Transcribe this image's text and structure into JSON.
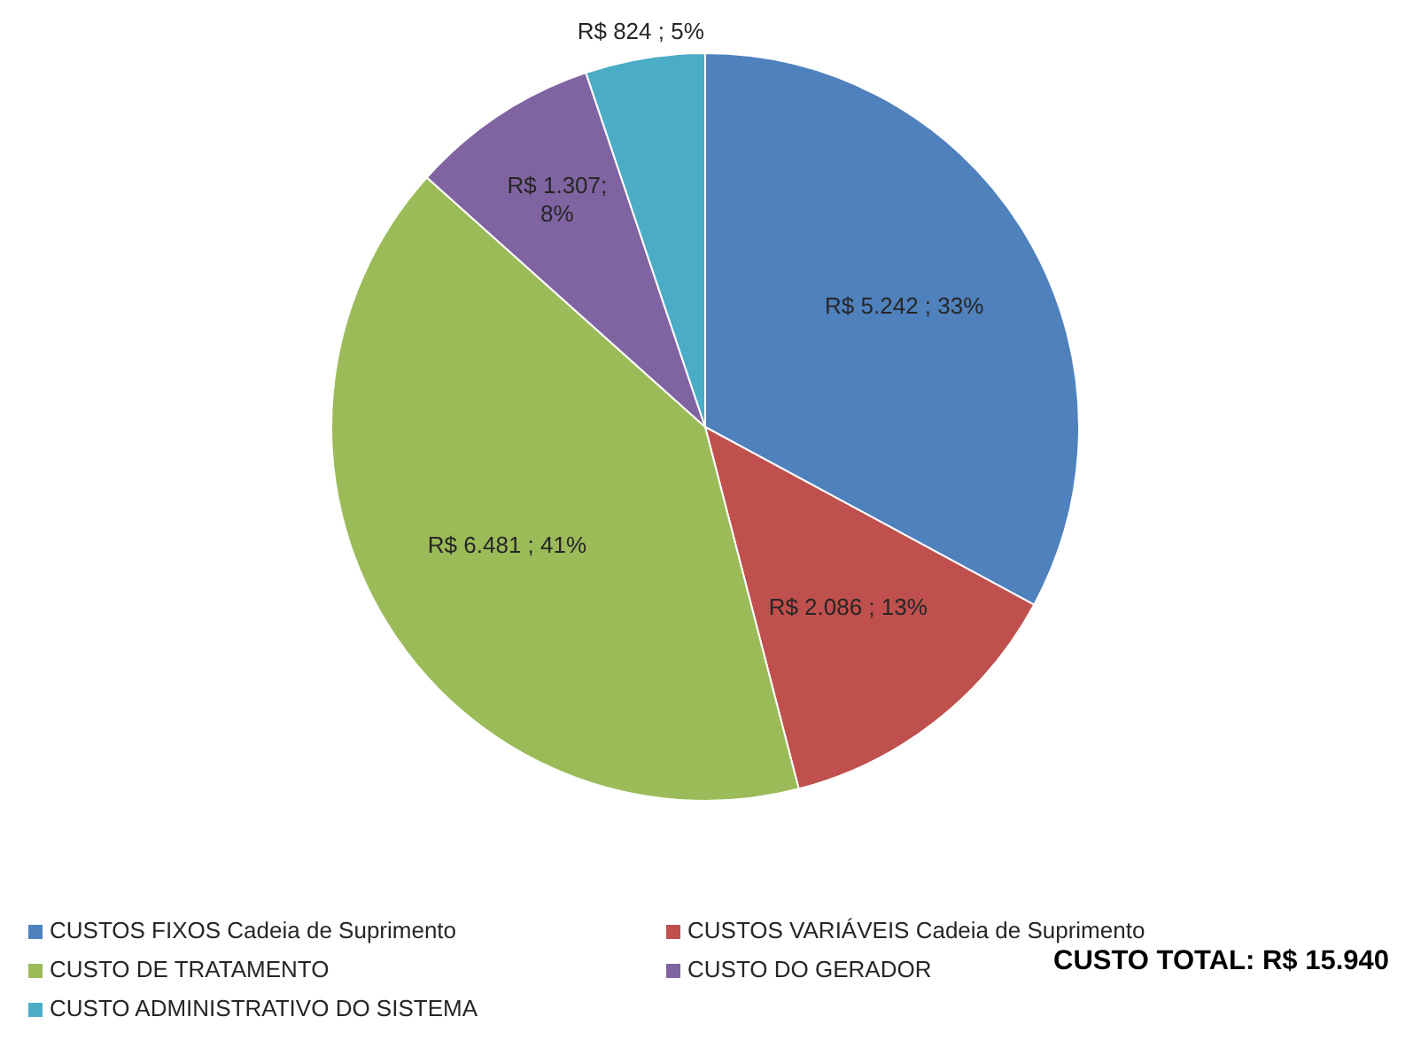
{
  "chart_data": {
    "type": "pie",
    "categories": [
      "CUSTOS FIXOS Cadeia de Suprimento",
      "CUSTOS VARIÁVEIS Cadeia de Suprimento",
      "CUSTO DE TRATAMENTO",
      "CUSTO DO GERADOR",
      "CUSTO ADMINISTRATIVO DO SISTEMA"
    ],
    "values": [
      5242,
      2086,
      6481,
      1307,
      824
    ],
    "colors": [
      "#4f81bd",
      "#c0504d",
      "#9bbb59",
      "#8064a2",
      "#4bacc6"
    ],
    "value_labels": [
      "R$ 5.242 ; 33%",
      "R$ 2.086 ; 13%",
      "R$ 6.481 ; 41%",
      "R$ 1.307; 8%",
      "R$ 824 ; 5%"
    ],
    "annotations": [
      "CUSTO TOTAL: R$ 15.940"
    ],
    "legend": "bottom"
  }
}
